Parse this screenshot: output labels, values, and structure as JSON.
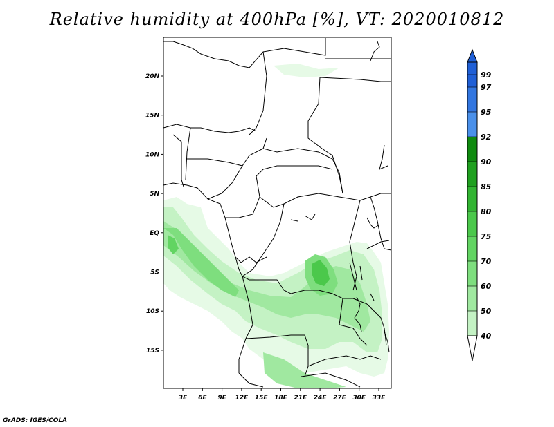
{
  "title": "Relative humidity at 400hPa [%], VT: 2020010812",
  "credit": "GrADS: IGES/COLA",
  "map": {
    "x_ticks": [
      "3E",
      "6E",
      "9E",
      "12E",
      "15E",
      "18E",
      "21E",
      "24E",
      "27E",
      "30E",
      "33E"
    ],
    "y_ticks": [
      "20N",
      "15N",
      "10N",
      "5N",
      "EQ",
      "5S",
      "10S",
      "15S"
    ]
  },
  "colorbar": {
    "levels": [
      "99",
      "97",
      "95",
      "92",
      "90",
      "85",
      "80",
      "75",
      "70",
      "60",
      "50",
      "40"
    ],
    "colors": [
      "#1f5fd6",
      "#3276e0",
      "#4a90ea",
      "#0f8a0f",
      "#1fa01f",
      "#32b432",
      "#4bc84b",
      "#62d462",
      "#7ede7e",
      "#a0e8a0",
      "#c4f2c4",
      "#e6fae6"
    ],
    "top_color": "#1f5fd6",
    "bottom_color": "#ffffff"
  },
  "fill_colors": {
    "light": "#e6fae6",
    "pale": "#c4f2c4",
    "soft": "#a0e8a0",
    "mid": "#7ede7e",
    "dark": "#4bc84b"
  }
}
